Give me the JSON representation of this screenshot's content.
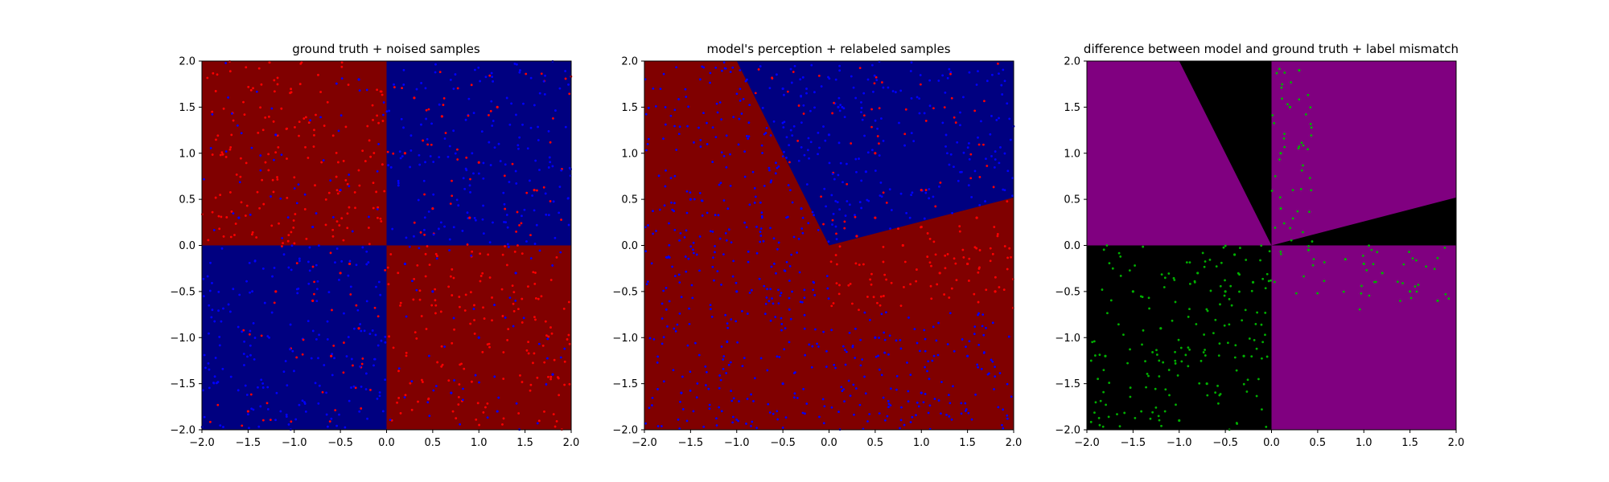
{
  "colors": {
    "dark_red": "#800000",
    "dark_blue": "#000080",
    "red_point": "#ff0000",
    "blue_point": "#0000ff",
    "purple": "#800080",
    "black": "#000000",
    "green_point": "#00b000"
  },
  "chart_data": [
    {
      "type": "scatter",
      "title": "ground truth + noised samples",
      "xlabel": "",
      "ylabel": "",
      "xlim": [
        -2.0,
        2.0
      ],
      "ylim": [
        -2.0,
        2.0
      ],
      "x_ticks": [
        "−2.0",
        "−1.5",
        "−1.0",
        "−0.5",
        "0.0",
        "0.5",
        "1.0",
        "1.5",
        "2.0"
      ],
      "y_ticks": [
        "2.0",
        "1.5",
        "1.0",
        "0.5",
        "0.0",
        "−0.5",
        "−1.0",
        "−1.5",
        "−2.0"
      ],
      "background": "quadrants: top-left dark red, top-right dark blue, bottom-left dark blue, bottom-right dark red",
      "series": [
        {
          "color": "#ff0000",
          "values": [
            [
              0.3,
              1.6
            ],
            [
              0.6,
              1.4
            ],
            [
              1.0,
              0.9
            ],
            [
              1.2,
              1.5
            ],
            [
              0.5,
              0.4
            ],
            [
              0.9,
              0.3
            ],
            [
              1.6,
              0.6
            ],
            [
              0.2,
              1.0
            ],
            [
              -0.5,
              -0.3
            ],
            [
              -0.8,
              -0.6
            ],
            [
              -0.3,
              -0.9
            ],
            [
              -1.2,
              -0.5
            ],
            [
              -0.6,
              -1.2
            ],
            [
              -1.5,
              -1.8
            ],
            [
              -0.4,
              -0.2
            ]
          ]
        },
        {
          "color": "#0000ff",
          "values": [
            [
              -0.5,
              0.6
            ],
            [
              -1.2,
              1.2
            ],
            [
              -0.3,
              1.8
            ],
            [
              -1.6,
              0.3
            ],
            [
              -0.8,
              0.2
            ],
            [
              0.5,
              -0.5
            ],
            [
              1.0,
              -1.0
            ],
            [
              1.4,
              -0.3
            ],
            [
              0.7,
              -1.6
            ],
            [
              1.8,
              -1.4
            ],
            [
              0.2,
              -0.2
            ],
            [
              1.2,
              -1.8
            ]
          ]
        }
      ],
      "grid": false,
      "legend": "none"
    },
    {
      "type": "scatter",
      "title": "model's perception + relabeled samples",
      "xlabel": "",
      "ylabel": "",
      "xlim": [
        -2.0,
        2.0
      ],
      "ylim": [
        -2.0,
        2.0
      ],
      "x_ticks": [
        "−2.0",
        "−1.5",
        "−1.0",
        "−0.5",
        "0.0",
        "0.5",
        "1.0",
        "1.5",
        "2.0"
      ],
      "y_ticks": [
        "2.0",
        "1.5",
        "1.0",
        "0.5",
        "0.0",
        "−0.5",
        "−1.0",
        "−1.5",
        "−2.0"
      ],
      "background": "dark blue wedge between line from (0,0) to (-1.0,2.0) and line from (0,0) to (2.0,0.52); dark red elsewhere",
      "series": [
        {
          "color": "#ff0000",
          "values": [
            [
              0.5,
              0.3
            ],
            [
              1.0,
              0.2
            ],
            [
              1.5,
              -0.2
            ],
            [
              1.8,
              -0.5
            ],
            [
              1.2,
              -0.3
            ],
            [
              0.8,
              0.0
            ],
            [
              0.3,
              0.1
            ],
            [
              1.6,
              0.3
            ],
            [
              1.0,
              0.6
            ],
            [
              0.5,
              1.0
            ]
          ]
        },
        {
          "color": "#0000ff",
          "values": [
            [
              0.0,
              1.2
            ],
            [
              -0.5,
              1.7
            ],
            [
              0.4,
              0.8
            ],
            [
              -1.5,
              0.5
            ],
            [
              -1.0,
              -0.5
            ],
            [
              -0.5,
              -1.5
            ],
            [
              0.5,
              -1.0
            ],
            [
              1.0,
              -1.6
            ],
            [
              1.5,
              -1.2
            ],
            [
              -1.6,
              -1.6
            ],
            [
              0.1,
              1.5
            ],
            [
              -0.3,
              0.4
            ]
          ]
        }
      ],
      "grid": false,
      "legend": "none"
    },
    {
      "type": "scatter",
      "title": "difference between model and ground truth + label mismatch",
      "xlabel": "",
      "ylabel": "",
      "xlim": [
        -2.0,
        2.0
      ],
      "ylim": [
        -2.0,
        2.0
      ],
      "x_ticks": [
        "−2.0",
        "−1.5",
        "−1.0",
        "−0.5",
        "0.0",
        "0.5",
        "1.0",
        "1.5",
        "2.0"
      ],
      "y_ticks": [
        "2.0",
        "1.5",
        "1.0",
        "0.5",
        "0.0",
        "−0.5",
        "−1.0",
        "−1.5",
        "−2.0"
      ],
      "background": "purple where model agrees with ground truth, black where it disagrees (bottom-left quadrant, wedge near top between x=-1.0 and 0, thin wedge right of origin up to y=0.52 at x=2.0)",
      "series": [
        {
          "color": "#00b000",
          "values": [
            [
              0.1,
              1.0
            ],
            [
              0.2,
              1.5
            ],
            [
              0.3,
              1.9
            ],
            [
              0.1,
              0.4
            ],
            [
              0.4,
              -0.05
            ],
            [
              0.8,
              -0.15
            ],
            [
              1.2,
              -0.3
            ],
            [
              1.5,
              -0.5
            ],
            [
              1.8,
              -0.6
            ],
            [
              1.0,
              -0.2
            ],
            [
              -0.2,
              -0.4
            ],
            [
              -0.5,
              -0.5
            ],
            [
              -0.8,
              -0.3
            ],
            [
              -1.2,
              -0.9
            ],
            [
              -1.5,
              -0.5
            ],
            [
              -0.3,
              -1.2
            ],
            [
              -0.7,
              -1.5
            ],
            [
              -1.8,
              -1.2
            ],
            [
              -1.0,
              -1.9
            ],
            [
              -0.4,
              -0.1
            ]
          ]
        }
      ],
      "grid": false,
      "legend": "none"
    }
  ]
}
